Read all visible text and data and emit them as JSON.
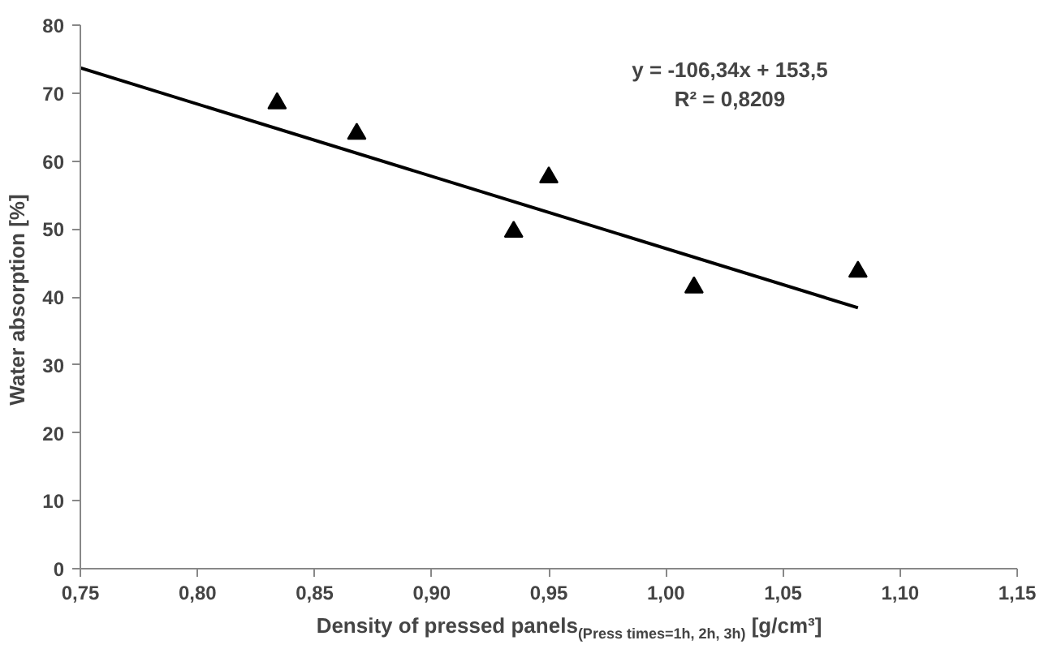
{
  "chart_data": {
    "type": "scatter",
    "xlabel": "Density of pressed panels$_{(Press times=1h, 2h, 3h)}$ [g/cm³]",
    "ylabel": "Water absorption  [%]",
    "series": [
      {
        "color": "#000000",
        "marker": "triangle",
        "x": [
          0.834,
          0.868,
          0.935,
          0.95,
          1.012,
          1.082
        ],
        "values": [
          68.5,
          64,
          49.6,
          57.6,
          41.4,
          43.7
        ]
      },
      {
        "type": "line",
        "color": "#000000",
        "marker": "none",
        "x": [
          0.75,
          1.082
        ],
        "values": [
          73.7,
          38.4
        ]
      }
    ],
    "annotations": [
      "y = -106,34x + 153,5",
      "R² = 0,8209"
    ],
    "xlim": [
      0.75,
      1.15
    ],
    "ylim": [
      0,
      80
    ],
    "xticks": [
      {
        "value": 0.75,
        "label": "0,75"
      },
      {
        "value": 0.8,
        "label": "0,80"
      },
      {
        "value": 0.85,
        "label": "0,85"
      },
      {
        "value": 0.9,
        "label": "0,90"
      },
      {
        "value": 0.95,
        "label": "0,95"
      },
      {
        "value": 1.0,
        "label": "1,00"
      },
      {
        "value": 1.05,
        "label": "1,05"
      },
      {
        "value": 1.1,
        "label": "1,10"
      },
      {
        "value": 1.15,
        "label": "1,15"
      }
    ],
    "yticks": [
      0,
      10,
      20,
      30,
      40,
      50,
      60,
      70,
      80
    ],
    "grid": false
  }
}
